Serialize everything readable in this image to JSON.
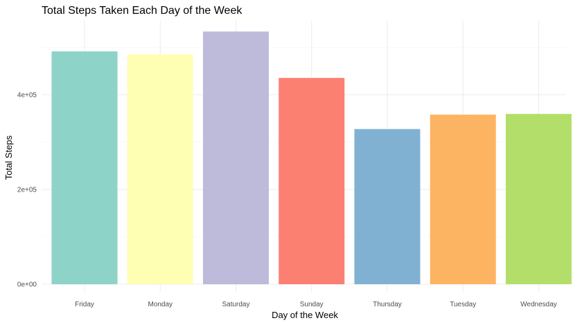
{
  "chart_data": {
    "type": "bar",
    "title": "Total Steps Taken Each Day of the Week",
    "xlabel": "Day of the Week",
    "ylabel": "Total Steps",
    "categories": [
      "Friday",
      "Monday",
      "Saturday",
      "Sunday",
      "Thursday",
      "Tuesday",
      "Wednesday"
    ],
    "values": [
      491500,
      485000,
      533500,
      435500,
      327500,
      358000,
      359500
    ],
    "colors": [
      "#8DD3C7",
      "#FFFFB3",
      "#BEBADA",
      "#FB8072",
      "#80B1D3",
      "#FDB462",
      "#B3DE69"
    ],
    "yticks": [
      {
        "value": 0,
        "label": "0e+00"
      },
      {
        "value": 200000,
        "label": "2e+05"
      },
      {
        "value": 400000,
        "label": "4e+05"
      }
    ],
    "ylim": [
      0,
      560000
    ],
    "grid": true,
    "legend": "none"
  }
}
